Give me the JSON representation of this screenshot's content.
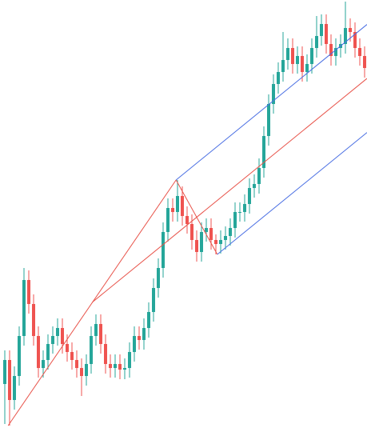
{
  "chart_data": {
    "type": "candlestick",
    "xlim": [
      -1,
      75.5
    ],
    "ylim": [
      0,
      560
    ],
    "up_color": "#26a69a",
    "down_color": "#ef5350",
    "open": [
      80,
      110,
      60,
      90,
      140,
      210,
      180,
      140,
      100,
      110,
      130,
      140,
      150,
      130,
      120,
      110,
      100,
      90,
      105,
      140,
      155,
      130,
      105,
      100,
      105,
      98,
      100,
      120,
      140,
      135,
      150,
      170,
      200,
      225,
      270,
      300,
      295,
      315,
      290,
      280,
      260,
      245,
      270,
      275,
      260,
      255,
      260,
      265,
      275,
      295,
      295,
      305,
      325,
      330,
      350,
      390,
      430,
      455,
      470,
      485,
      500,
      480,
      490,
      470,
      480,
      500,
      515,
      530,
      505,
      490,
      500,
      505,
      525,
      520,
      500,
      490
    ],
    "high": [
      122,
      122,
      102,
      152,
      225,
      222,
      192,
      152,
      122,
      142,
      152,
      162,
      162,
      142,
      132,
      122,
      112,
      117,
      152,
      167,
      167,
      142,
      117,
      117,
      117,
      112,
      132,
      152,
      152,
      162,
      182,
      212,
      237,
      282,
      312,
      312,
      335,
      327,
      302,
      292,
      272,
      282,
      287,
      287,
      267,
      272,
      277,
      287,
      307,
      307,
      317,
      337,
      342,
      362,
      402,
      442,
      467,
      482,
      520,
      512,
      512,
      502,
      502,
      492,
      512,
      540,
      542,
      542,
      517,
      512,
      517,
      558,
      537,
      532,
      512,
      502
    ],
    "low": [
      30,
      28,
      48,
      78,
      128,
      168,
      128,
      88,
      88,
      98,
      118,
      128,
      118,
      108,
      98,
      88,
      65,
      78,
      93,
      128,
      118,
      93,
      88,
      88,
      86,
      86,
      88,
      108,
      123,
      123,
      138,
      158,
      188,
      213,
      258,
      283,
      283,
      278,
      268,
      248,
      233,
      233,
      258,
      248,
      242,
      243,
      248,
      253,
      263,
      283,
      283,
      293,
      313,
      318,
      338,
      378,
      418,
      443,
      458,
      473,
      468,
      468,
      458,
      458,
      468,
      488,
      503,
      493,
      478,
      478,
      488,
      493,
      508,
      488,
      478,
      463
    ],
    "close": [
      110,
      60,
      90,
      140,
      210,
      180,
      140,
      100,
      110,
      130,
      140,
      150,
      130,
      120,
      110,
      100,
      90,
      105,
      140,
      155,
      130,
      105,
      100,
      105,
      98,
      100,
      120,
      140,
      135,
      150,
      170,
      200,
      225,
      270,
      300,
      295,
      315,
      290,
      280,
      260,
      245,
      270,
      275,
      260,
      255,
      260,
      265,
      275,
      295,
      295,
      305,
      325,
      330,
      350,
      390,
      430,
      455,
      470,
      485,
      500,
      480,
      490,
      470,
      480,
      500,
      515,
      530,
      505,
      490,
      500,
      505,
      525,
      520,
      500,
      490,
      475
    ],
    "pitchfork": {
      "red": "#e8534a",
      "blue": "#4a6fe3",
      "points": [
        {
          "x": 0.7,
          "y": 28
        },
        {
          "x": 18.2,
          "y": 182
        },
        {
          "x": 35.7,
          "y": 335
        },
        {
          "x": 44.3,
          "y": 242
        }
      ]
    }
  }
}
